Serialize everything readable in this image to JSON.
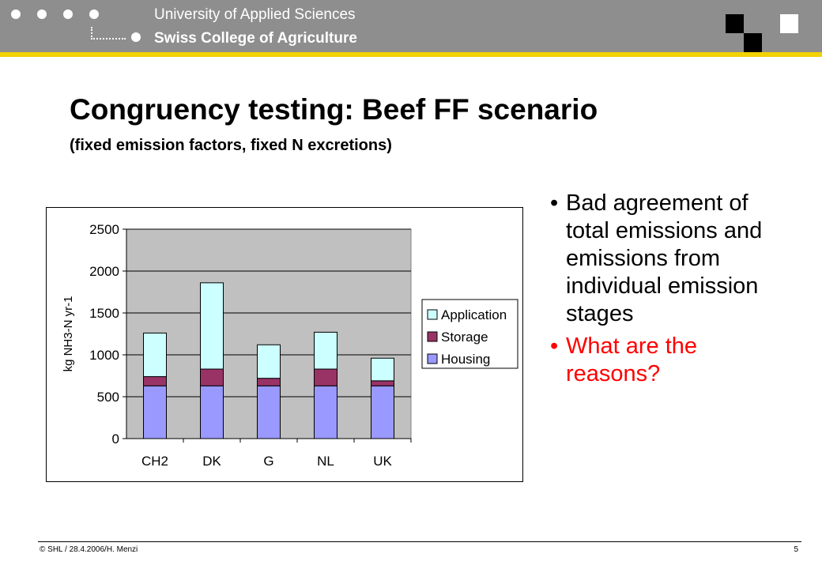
{
  "header": {
    "university": "University of Applied Sciences",
    "school": "Swiss College of Agriculture",
    "colors": {
      "bar": "#8e8e8e",
      "accent_line": "#f2d200"
    }
  },
  "slide": {
    "title": "Congruency testing: Beef FF scenario",
    "subtitle": "(fixed emission factors, fixed N excretions)",
    "bullets": [
      {
        "text": "Bad agreement of total emissions and emissions from individual emission stages",
        "color": "#000000"
      },
      {
        "text": "What are the reasons?",
        "color": "#ff0000"
      }
    ]
  },
  "chart_data": {
    "type": "bar",
    "stacked": true,
    "categories": [
      "CH2",
      "DK",
      "G",
      "NL",
      "UK"
    ],
    "series": [
      {
        "name": "Housing",
        "color": "#9999ff",
        "values": [
          630,
          630,
          630,
          630,
          630
        ]
      },
      {
        "name": "Storage",
        "color": "#993366",
        "values": [
          110,
          200,
          90,
          200,
          60
        ]
      },
      {
        "name": "Application",
        "color": "#ccffff",
        "values": [
          520,
          1030,
          400,
          440,
          270
        ]
      }
    ],
    "ylabel": "kg NH3-N yr-1",
    "xlabel": "",
    "ylim": [
      0,
      2500
    ],
    "yticks": [
      0,
      500,
      1000,
      1500,
      2000,
      2500
    ],
    "grid": true,
    "plot_background": "#c0c0c0",
    "legend": "right"
  },
  "footer": {
    "text": "© SHL  / 28.4.2006/H. Menzi",
    "page": "5"
  }
}
